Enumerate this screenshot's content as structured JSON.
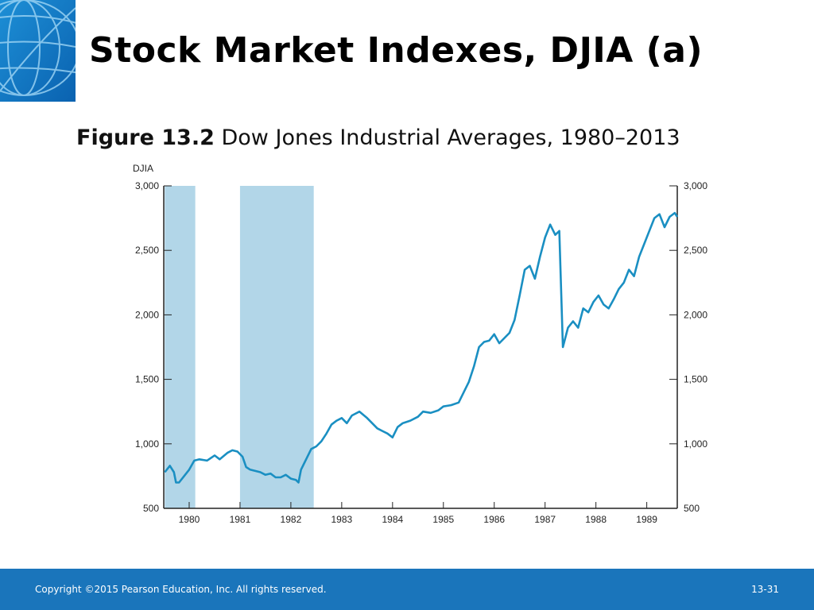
{
  "slide": {
    "title": "Stock Market Indexes, DJIA (a)",
    "figure_label": "Figure 13.2",
    "figure_title": "Dow Jones Industrial Averages, 1980–2013"
  },
  "footer": {
    "copyright": "Copyright ©2015 Pearson Education, Inc. All rights reserved.",
    "slide_number": "13-31"
  },
  "colors": {
    "series": "#1a8fc2",
    "recession": "#b2d6e8",
    "footer": "#1a75bb"
  },
  "chart_data": {
    "type": "line",
    "ylabel": "DJIA",
    "xlabel": "",
    "ylim": [
      500,
      3000
    ],
    "xlim": [
      1979.5,
      1989.6
    ],
    "yticks": [
      "500",
      "1,000",
      "1,500",
      "2,000",
      "2,500",
      "3,000"
    ],
    "xticks": [
      "1980",
      "1981",
      "1982",
      "1983",
      "1984",
      "1985",
      "1986",
      "1987",
      "1988",
      "1989"
    ],
    "recessions": [
      [
        1979.52,
        1980.12
      ],
      [
        1981.0,
        1982.45
      ]
    ],
    "grid": false,
    "series": [
      {
        "values": [
          [
            1979.52,
            780
          ],
          [
            1979.62,
            830
          ],
          [
            1979.7,
            780
          ],
          [
            1979.74,
            700
          ],
          [
            1979.8,
            700
          ],
          [
            1979.9,
            750
          ],
          [
            1980.0,
            800
          ],
          [
            1980.1,
            870
          ],
          [
            1980.2,
            880
          ],
          [
            1980.35,
            870
          ],
          [
            1980.5,
            910
          ],
          [
            1980.6,
            880
          ],
          [
            1980.75,
            930
          ],
          [
            1980.85,
            950
          ],
          [
            1980.95,
            940
          ],
          [
            1981.05,
            900
          ],
          [
            1981.12,
            820
          ],
          [
            1981.2,
            800
          ],
          [
            1981.3,
            790
          ],
          [
            1981.4,
            780
          ],
          [
            1981.5,
            760
          ],
          [
            1981.6,
            770
          ],
          [
            1981.7,
            740
          ],
          [
            1981.8,
            740
          ],
          [
            1981.9,
            760
          ],
          [
            1982.0,
            730
          ],
          [
            1982.1,
            720
          ],
          [
            1982.15,
            700
          ],
          [
            1982.2,
            800
          ],
          [
            1982.3,
            880
          ],
          [
            1982.4,
            960
          ],
          [
            1982.5,
            980
          ],
          [
            1982.6,
            1020
          ],
          [
            1982.7,
            1080
          ],
          [
            1982.8,
            1150
          ],
          [
            1982.9,
            1180
          ],
          [
            1983.0,
            1200
          ],
          [
            1983.1,
            1160
          ],
          [
            1983.2,
            1220
          ],
          [
            1983.35,
            1250
          ],
          [
            1983.5,
            1200
          ],
          [
            1983.6,
            1160
          ],
          [
            1983.7,
            1120
          ],
          [
            1983.8,
            1100
          ],
          [
            1983.9,
            1080
          ],
          [
            1984.0,
            1050
          ],
          [
            1984.1,
            1130
          ],
          [
            1984.2,
            1160
          ],
          [
            1984.35,
            1180
          ],
          [
            1984.5,
            1210
          ],
          [
            1984.6,
            1250
          ],
          [
            1984.75,
            1240
          ],
          [
            1984.9,
            1260
          ],
          [
            1985.0,
            1290
          ],
          [
            1985.15,
            1300
          ],
          [
            1985.3,
            1320
          ],
          [
            1985.4,
            1400
          ],
          [
            1985.5,
            1480
          ],
          [
            1985.6,
            1600
          ],
          [
            1985.7,
            1750
          ],
          [
            1985.8,
            1790
          ],
          [
            1985.9,
            1800
          ],
          [
            1986.0,
            1850
          ],
          [
            1986.1,
            1780
          ],
          [
            1986.2,
            1820
          ],
          [
            1986.3,
            1860
          ],
          [
            1986.4,
            1960
          ],
          [
            1986.5,
            2150
          ],
          [
            1986.6,
            2350
          ],
          [
            1986.7,
            2380
          ],
          [
            1986.8,
            2280
          ],
          [
            1986.9,
            2450
          ],
          [
            1987.0,
            2600
          ],
          [
            1987.1,
            2700
          ],
          [
            1987.2,
            2620
          ],
          [
            1987.28,
            2650
          ],
          [
            1987.35,
            1750
          ],
          [
            1987.45,
            1900
          ],
          [
            1987.55,
            1950
          ],
          [
            1987.65,
            1900
          ],
          [
            1987.75,
            2050
          ],
          [
            1987.85,
            2020
          ],
          [
            1987.95,
            2100
          ],
          [
            1988.05,
            2150
          ],
          [
            1988.15,
            2080
          ],
          [
            1988.25,
            2050
          ],
          [
            1988.35,
            2120
          ],
          [
            1988.45,
            2200
          ],
          [
            1988.55,
            2250
          ],
          [
            1988.65,
            2350
          ],
          [
            1988.75,
            2300
          ],
          [
            1988.85,
            2450
          ],
          [
            1988.95,
            2550
          ],
          [
            1989.05,
            2650
          ],
          [
            1989.15,
            2750
          ],
          [
            1989.25,
            2780
          ],
          [
            1989.35,
            2680
          ],
          [
            1989.45,
            2760
          ],
          [
            1989.55,
            2790
          ],
          [
            1989.6,
            2760
          ]
        ]
      }
    ]
  }
}
